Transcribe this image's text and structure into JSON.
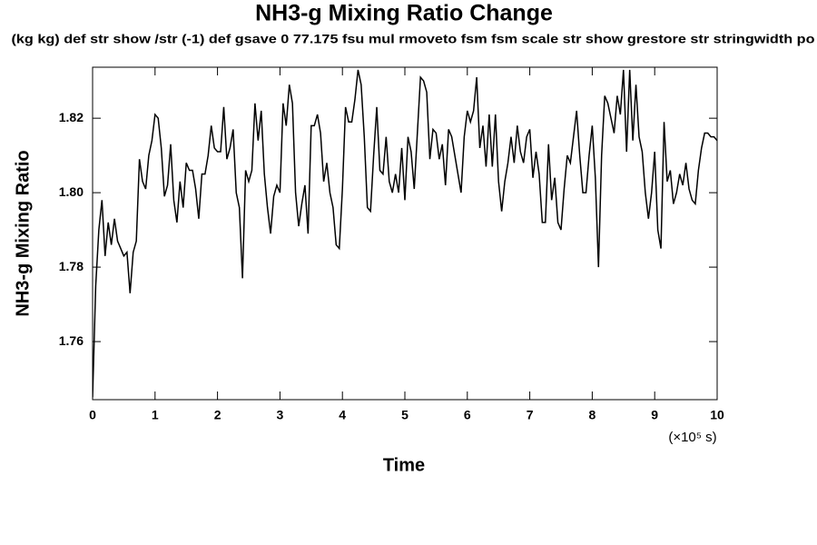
{
  "chart_data": {
    "type": "line",
    "title": "NH3-g Mixing Ratio Change",
    "subtitle": "(kg kg) def str show /str (-1) def gsave 0 77.175 fsu mul rmoveto fsm fsm scale str show grestore str stringwidth po",
    "x_label": "Time",
    "x_unit_label": "(×10⁵ s)",
    "y_label": "NH3-g Mixing Ratio",
    "xlim": [
      0,
      10
    ],
    "xticks": [
      0,
      1,
      2,
      3,
      4,
      5,
      6,
      7,
      8,
      9,
      10
    ],
    "ylim": [
      1.7444,
      1.8337
    ],
    "yticks": [
      1.76,
      1.78,
      {
        "value": 1.8,
        "label": "1.80"
      },
      1.82
    ],
    "x": [
      0,
      0.05,
      0.1,
      0.15,
      0.2,
      0.25,
      0.3,
      0.35,
      0.4,
      0.45,
      0.5,
      0.55,
      0.6,
      0.65,
      0.7,
      0.75,
      0.8,
      0.85,
      0.9,
      0.95,
      1,
      1.05,
      1.1,
      1.15,
      1.2,
      1.25,
      1.3,
      1.35,
      1.4,
      1.45,
      1.5,
      1.55,
      1.6,
      1.65,
      1.7,
      1.75,
      1.8,
      1.85,
      1.9,
      1.95,
      2,
      2.05,
      2.1,
      2.15,
      2.2,
      2.25,
      2.3,
      2.35,
      2.4,
      2.45,
      2.5,
      2.55,
      2.6,
      2.65,
      2.7,
      2.75,
      2.8,
      2.85,
      2.9,
      2.95,
      3,
      3.05,
      3.1,
      3.15,
      3.2,
      3.25,
      3.3,
      3.35,
      3.4,
      3.45,
      3.5,
      3.55,
      3.6,
      3.65,
      3.7,
      3.75,
      3.8,
      3.85,
      3.9,
      3.95,
      4,
      4.05,
      4.1,
      4.15,
      4.2,
      4.25,
      4.3,
      4.35,
      4.4,
      4.45,
      4.5,
      4.55,
      4.6,
      4.65,
      4.7,
      4.75,
      4.8,
      4.85,
      4.9,
      4.95,
      5,
      5.05,
      5.1,
      5.15,
      5.2,
      5.25,
      5.3,
      5.35,
      5.4,
      5.45,
      5.5,
      5.55,
      5.6,
      5.65,
      5.7,
      5.75,
      5.8,
      5.85,
      5.9,
      5.95,
      6,
      6.05,
      6.1,
      6.15,
      6.2,
      6.25,
      6.3,
      6.35,
      6.4,
      6.45,
      6.5,
      6.55,
      6.6,
      6.65,
      6.7,
      6.75,
      6.8,
      6.85,
      6.9,
      6.95,
      7,
      7.05,
      7.1,
      7.15,
      7.2,
      7.25,
      7.3,
      7.35,
      7.4,
      7.45,
      7.5,
      7.55,
      7.6,
      7.65,
      7.7,
      7.75,
      7.8,
      7.85,
      7.9,
      7.95,
      8,
      8.05,
      8.1,
      8.15,
      8.2,
      8.25,
      8.3,
      8.35,
      8.4,
      8.45,
      8.5,
      8.55,
      8.6,
      8.65,
      8.7,
      8.75,
      8.8,
      8.85,
      8.9,
      8.95,
      9,
      9.05,
      9.1,
      9.15,
      9.2,
      9.25,
      9.3,
      9.35,
      9.4,
      9.45,
      9.5,
      9.55,
      9.6,
      9.65,
      9.7,
      9.75,
      9.8,
      9.85,
      9.9,
      9.95,
      10
    ],
    "series": [
      {
        "color": "#000000",
        "values": [
          1.745,
          1.775,
          1.79,
          1.798,
          1.783,
          1.792,
          1.786,
          1.793,
          1.787,
          1.785,
          1.783,
          1.784,
          1.773,
          1.784,
          1.787,
          1.809,
          1.803,
          1.801,
          1.81,
          1.814,
          1.821,
          1.82,
          1.812,
          1.799,
          1.802,
          1.813,
          1.798,
          1.792,
          1.803,
          1.796,
          1.808,
          1.806,
          1.806,
          1.801,
          1.793,
          1.805,
          1.805,
          1.81,
          1.818,
          1.812,
          1.811,
          1.811,
          1.823,
          1.809,
          1.812,
          1.817,
          1.8,
          1.796,
          1.777,
          1.806,
          1.803,
          1.806,
          1.824,
          1.814,
          1.822,
          1.805,
          1.796,
          1.789,
          1.799,
          1.802,
          1.8,
          1.824,
          1.818,
          1.829,
          1.824,
          1.8,
          1.791,
          1.797,
          1.802,
          1.789,
          1.818,
          1.818,
          1.821,
          1.816,
          1.803,
          1.808,
          1.8,
          1.796,
          1.786,
          1.785,
          1.801,
          1.823,
          1.819,
          1.819,
          1.825,
          1.833,
          1.829,
          1.815,
          1.796,
          1.795,
          1.81,
          1.823,
          1.806,
          1.805,
          1.815,
          1.803,
          1.8,
          1.805,
          1.8,
          1.812,
          1.798,
          1.815,
          1.811,
          1.801,
          1.816,
          1.831,
          1.83,
          1.827,
          1.809,
          1.817,
          1.816,
          1.809,
          1.813,
          1.802,
          1.817,
          1.815,
          1.81,
          1.805,
          1.8,
          1.815,
          1.822,
          1.819,
          1.822,
          1.831,
          1.812,
          1.818,
          1.807,
          1.821,
          1.807,
          1.821,
          1.803,
          1.795,
          1.803,
          1.808,
          1.815,
          1.808,
          1.818,
          1.811,
          1.808,
          1.815,
          1.817,
          1.804,
          1.811,
          1.805,
          1.792,
          1.792,
          1.813,
          1.798,
          1.804,
          1.792,
          1.79,
          1.801,
          1.81,
          1.808,
          1.815,
          1.822,
          1.81,
          1.8,
          1.8,
          1.81,
          1.818,
          1.804,
          1.78,
          1.81,
          1.826,
          1.824,
          1.82,
          1.816,
          1.826,
          1.821,
          1.833,
          1.811,
          1.833,
          1.814,
          1.829,
          1.815,
          1.811,
          1.8,
          1.793,
          1.8,
          1.811,
          1.79,
          1.785,
          1.819,
          1.803,
          1.806,
          1.797,
          1.8,
          1.805,
          1.802,
          1.808,
          1.801,
          1.798,
          1.797,
          1.806,
          1.812,
          1.816,
          1.816,
          1.815,
          1.815,
          1.814
        ]
      }
    ]
  }
}
